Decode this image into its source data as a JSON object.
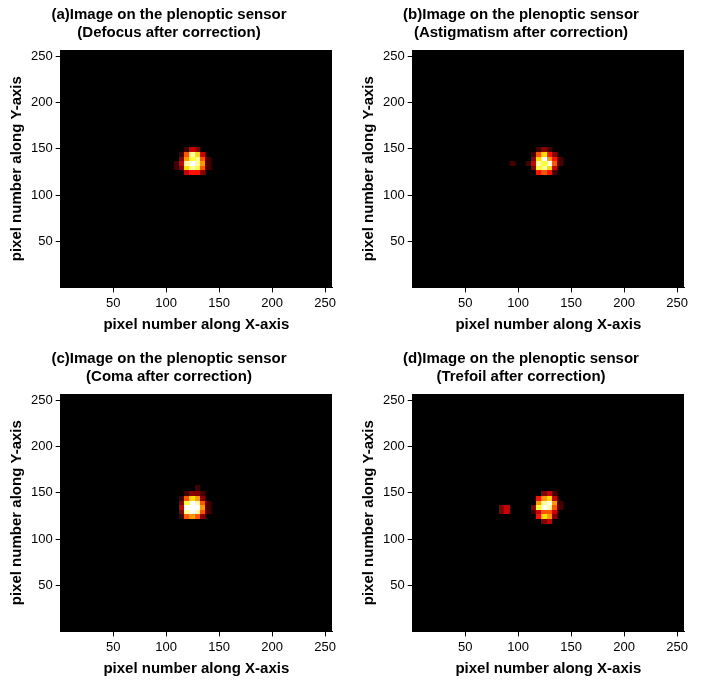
{
  "chart_data": [
    {
      "type": "heatmap",
      "title": [
        "(a)Image on the plenoptic sensor",
        "(Defocus after correction)"
      ],
      "xlabel": "pixel number along X-axis",
      "ylabel": "pixel number along Y-axis",
      "xlim": [
        0.5,
        256.5
      ],
      "ylim": [
        0.5,
        256.5
      ],
      "xticks": [
        50,
        100,
        150,
        200,
        250
      ],
      "yticks": [
        50,
        100,
        150,
        200,
        250
      ],
      "grid": false,
      "color": "hot",
      "zlim": [
        0,
        1
      ],
      "x": [
        85,
        90,
        95,
        100,
        105,
        110,
        115,
        120,
        125,
        130,
        135,
        140,
        145
      ],
      "y": [
        120,
        125,
        130,
        135,
        140,
        145,
        150,
        155
      ],
      "cells": [
        [
          0,
          0,
          0,
          0,
          0,
          0,
          0,
          0,
          0,
          0,
          0,
          0,
          0
        ],
        [
          0,
          0,
          0,
          0,
          0,
          0,
          0,
          0.3,
          0.4,
          0.4,
          0.2,
          0,
          0
        ],
        [
          0,
          0,
          0,
          0,
          0,
          0.1,
          0.2,
          0.7,
          0.9,
          0.8,
          0.5,
          0.1,
          0
        ],
        [
          0,
          0,
          0,
          0,
          0,
          0.1,
          0.3,
          0.9,
          1,
          0.9,
          0.6,
          0.1,
          0
        ],
        [
          0,
          0,
          0,
          0,
          0,
          0,
          0.2,
          0.6,
          0.8,
          0.9,
          0.5,
          0.1,
          0
        ],
        [
          0,
          0,
          0,
          0,
          0,
          0,
          0.1,
          0.5,
          0.9,
          0.7,
          0.3,
          0,
          0
        ],
        [
          0,
          0,
          0,
          0,
          0,
          0,
          0,
          0.1,
          0.3,
          0.2,
          0,
          0,
          0
        ],
        [
          0,
          0,
          0,
          0,
          0,
          0,
          0,
          0,
          0,
          0,
          0,
          0,
          0
        ]
      ]
    },
    {
      "type": "heatmap",
      "title": [
        "(b)Image on the plenoptic sensor",
        "(Astigmatism after correction)"
      ],
      "xlabel": "pixel number along X-axis",
      "ylabel": "pixel number along Y-axis",
      "xlim": [
        0.5,
        256.5
      ],
      "ylim": [
        0.5,
        256.5
      ],
      "xticks": [
        50,
        100,
        150,
        200,
        250
      ],
      "yticks": [
        50,
        100,
        150,
        200,
        250
      ],
      "grid": false,
      "color": "hot",
      "zlim": [
        0,
        1
      ],
      "x": [
        85,
        90,
        95,
        100,
        105,
        110,
        115,
        120,
        125,
        130,
        135,
        140,
        145
      ],
      "y": [
        120,
        125,
        130,
        135,
        140,
        145,
        150,
        155
      ],
      "cells": [
        [
          0,
          0,
          0,
          0,
          0,
          0,
          0,
          0,
          0,
          0,
          0,
          0,
          0
        ],
        [
          0,
          0,
          0,
          0,
          0,
          0,
          0,
          0.4,
          0.5,
          0.4,
          0.1,
          0,
          0
        ],
        [
          0,
          0,
          0,
          0,
          0,
          0,
          0.2,
          0.8,
          0.9,
          0.7,
          0.3,
          0,
          0
        ],
        [
          0,
          0,
          0.1,
          0,
          0,
          0.1,
          0.3,
          0.9,
          0.8,
          1,
          0.5,
          0.1,
          0
        ],
        [
          0,
          0,
          0,
          0,
          0,
          0,
          0.2,
          0.7,
          1,
          0.6,
          0.4,
          0.1,
          0
        ],
        [
          0,
          0,
          0,
          0,
          0,
          0,
          0.1,
          0.5,
          0.7,
          0.4,
          0.2,
          0,
          0
        ],
        [
          0,
          0,
          0,
          0,
          0,
          0,
          0,
          0.1,
          0.2,
          0.1,
          0,
          0,
          0
        ],
        [
          0,
          0,
          0,
          0,
          0,
          0,
          0,
          0,
          0,
          0,
          0,
          0,
          0
        ]
      ]
    },
    {
      "type": "heatmap",
      "title": [
        "(c)Image on the plenoptic sensor",
        "(Coma after correction)"
      ],
      "xlabel": "pixel number along X-axis",
      "ylabel": "pixel number along Y-axis",
      "xlim": [
        0.5,
        256.5
      ],
      "ylim": [
        0.5,
        256.5
      ],
      "xticks": [
        50,
        100,
        150,
        200,
        250
      ],
      "yticks": [
        50,
        100,
        150,
        200,
        250
      ],
      "grid": false,
      "color": "hot",
      "zlim": [
        0,
        1
      ],
      "x": [
        85,
        90,
        95,
        100,
        105,
        110,
        115,
        120,
        125,
        130,
        135,
        140,
        145
      ],
      "y": [
        120,
        125,
        130,
        135,
        140,
        145,
        150,
        155
      ],
      "cells": [
        [
          0,
          0,
          0,
          0,
          0,
          0,
          0,
          0,
          0,
          0,
          0,
          0,
          0
        ],
        [
          0,
          0,
          0,
          0,
          0,
          0,
          0.1,
          0.5,
          0.6,
          0.5,
          0.2,
          0,
          0
        ],
        [
          0,
          0,
          0,
          0,
          0,
          0,
          0.2,
          0.9,
          1,
          0.9,
          0.5,
          0.1,
          0
        ],
        [
          0,
          0,
          0,
          0,
          0,
          0,
          0.3,
          1,
          1,
          1,
          0.6,
          0.1,
          0
        ],
        [
          0,
          0,
          0,
          0,
          0,
          0,
          0.2,
          0.8,
          1,
          0.9,
          0.5,
          0.1,
          0
        ],
        [
          0,
          0,
          0,
          0,
          0,
          0,
          0.1,
          0.5,
          0.7,
          0.6,
          0.2,
          0,
          0
        ],
        [
          0,
          0,
          0,
          0,
          0,
          0,
          0,
          0.1,
          0.2,
          0.2,
          0.1,
          0,
          0
        ],
        [
          0,
          0,
          0,
          0,
          0,
          0,
          0,
          0,
          0,
          0.1,
          0,
          0,
          0
        ]
      ]
    },
    {
      "type": "heatmap",
      "title": [
        "(d)Image on the plenoptic sensor",
        "(Trefoil after correction)"
      ],
      "xlabel": "pixel number along X-axis",
      "ylabel": "pixel number along Y-axis",
      "xlim": [
        0.5,
        256.5
      ],
      "ylim": [
        0.5,
        256.5
      ],
      "xticks": [
        50,
        100,
        150,
        200,
        250
      ],
      "yticks": [
        50,
        100,
        150,
        200,
        250
      ],
      "grid": false,
      "color": "hot",
      "zlim": [
        0,
        1
      ],
      "x": [
        85,
        90,
        95,
        100,
        105,
        110,
        115,
        120,
        125,
        130,
        135,
        140,
        145
      ],
      "y": [
        120,
        125,
        130,
        135,
        140,
        145,
        150,
        155
      ],
      "cells": [
        [
          0,
          0,
          0,
          0,
          0,
          0,
          0,
          0,
          0.2,
          0.3,
          0,
          0,
          0
        ],
        [
          0,
          0,
          0,
          0,
          0,
          0,
          0,
          0.4,
          0.7,
          0.6,
          0.2,
          0,
          0
        ],
        [
          0.2,
          0.3,
          0,
          0,
          0,
          0,
          0.1,
          0.3,
          0.5,
          0.5,
          0.3,
          0,
          0
        ],
        [
          0.2,
          0.3,
          0,
          0,
          0,
          0,
          0.2,
          0.8,
          1,
          0.9,
          0.5,
          0.1,
          0
        ],
        [
          0,
          0,
          0,
          0,
          0,
          0,
          0,
          0.6,
          0.9,
          1,
          0.6,
          0.1,
          0
        ],
        [
          0,
          0,
          0,
          0,
          0,
          0,
          0,
          0.4,
          0.6,
          0.7,
          0.3,
          0,
          0
        ],
        [
          0,
          0,
          0,
          0,
          0,
          0,
          0,
          0,
          0.2,
          0.3,
          0.1,
          0,
          0
        ],
        [
          0,
          0,
          0,
          0,
          0,
          0,
          0,
          0,
          0,
          0,
          0,
          0,
          0
        ]
      ]
    }
  ]
}
